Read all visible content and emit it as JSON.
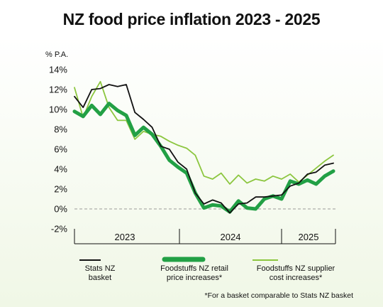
{
  "title": "NZ food price inflation 2023 - 2025",
  "footnote": "*For a basket comparable to Stats NZ basket",
  "colors": {
    "stats_nz": "#111111",
    "retail": "#22a045",
    "supplier": "#8cc63f",
    "zero_line": "#9a9a9a"
  },
  "legend": [
    {
      "label_line1": "Stats NZ",
      "label_line2": "basket"
    },
    {
      "label_line1": "Foodstuffs NZ retail",
      "label_line2": "price increases*"
    },
    {
      "label_line1": "Foodstuffs NZ supplier",
      "label_line2": "cost increases*"
    }
  ],
  "chart_data": {
    "type": "line",
    "title": "NZ food price inflation 2023 - 2025",
    "ylabel": "% P.A.",
    "ylim": [
      -2,
      14
    ],
    "yticks": [
      "14%",
      "12%",
      "10%",
      "8%",
      "6%",
      "4%",
      "2%",
      "0%",
      "-2%"
    ],
    "ytick_values": [
      14,
      12,
      10,
      8,
      6,
      4,
      2,
      0,
      -2
    ],
    "year_labels": [
      "2023",
      "2024",
      "2025"
    ],
    "x": [
      "Jan 2023",
      "Feb 2023",
      "Mar 2023",
      "Apr 2023",
      "May 2023",
      "Jun 2023",
      "Jul 2023",
      "Aug 2023",
      "Sep 2023",
      "Oct 2023",
      "Nov 2023",
      "Dec 2023",
      "Jan 2024",
      "Feb 2024",
      "Mar 2024",
      "Apr 2024",
      "May 2024",
      "Jun 2024",
      "Jul 2024",
      "Aug 2024",
      "Sep 2024",
      "Oct 2024",
      "Nov 2024",
      "Dec 2024",
      "Jan 2025",
      "Feb 2025",
      "Mar 2025",
      "Apr 2025",
      "May 2025",
      "Jun 2025",
      "Jul 2025"
    ],
    "series": [
      {
        "name": "Stats NZ basket",
        "key": "stats_nz",
        "values": [
          11.3,
          10.2,
          12.0,
          12.1,
          12.5,
          12.3,
          12.5,
          9.7,
          9.0,
          8.2,
          6.3,
          6.0,
          4.7,
          4.0,
          1.6,
          0.5,
          0.9,
          0.6,
          -0.4,
          0.5,
          0.6,
          1.2,
          1.2,
          1.3,
          1.4,
          2.3,
          2.6,
          3.5,
          3.7,
          4.4,
          4.6
        ]
      },
      {
        "name": "Foodstuffs NZ retail price increases*",
        "key": "retail",
        "values": [
          9.8,
          9.3,
          10.4,
          9.5,
          10.6,
          9.9,
          9.4,
          7.4,
          8.2,
          7.5,
          6.3,
          4.9,
          4.2,
          3.6,
          1.6,
          0.1,
          0.4,
          0.3,
          -0.3,
          0.8,
          0.1,
          0.0,
          1.0,
          1.3,
          1.0,
          2.8,
          2.5,
          2.9,
          2.5,
          3.3,
          3.8
        ]
      },
      {
        "name": "Foodstuffs NZ supplier cost increases*",
        "key": "supplier",
        "values": [
          12.2,
          9.2,
          11.3,
          12.8,
          10.2,
          8.9,
          8.9,
          7.0,
          7.8,
          7.5,
          7.3,
          6.8,
          6.4,
          6.1,
          5.4,
          3.3,
          3.0,
          3.6,
          2.5,
          3.4,
          2.6,
          3.0,
          2.8,
          3.3,
          3.0,
          3.5,
          2.7,
          3.4,
          4.1,
          4.8,
          5.4
        ]
      }
    ],
    "reference_line": {
      "y": 0,
      "style": "dashed"
    },
    "grid": false,
    "legend_position": "bottom"
  }
}
